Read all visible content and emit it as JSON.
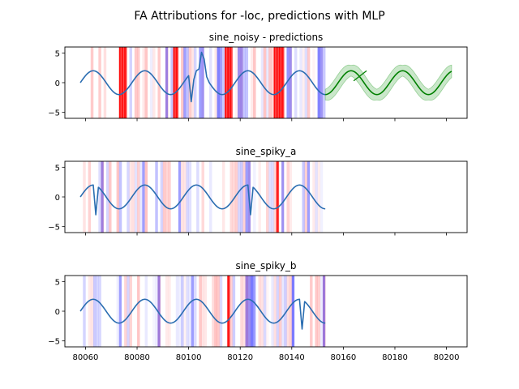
{
  "figure": {
    "suptitle": "FA Attributions for -loc, predictions with MLP"
  },
  "chart_data": [
    {
      "type": "line",
      "title": "sine_noisy - predictions",
      "xlim": [
        80052,
        80208
      ],
      "ylim": [
        -6,
        6
      ],
      "xticks": [
        80060,
        80080,
        80100,
        80120,
        80140,
        80160,
        80180,
        80200
      ],
      "xtick_labels_visible": false,
      "yticks": [
        -5,
        0,
        5
      ],
      "signal": {
        "x_start": 80058,
        "x_end": 80153,
        "period": 20,
        "amplitude": 2,
        "phase_peak_x": 80063
      },
      "spikes": [
        [
          80101,
          -3.2
        ],
        [
          80102,
          0.5
        ],
        [
          80104,
          2.3
        ],
        [
          80105,
          5.1
        ],
        [
          80106,
          4.0
        ],
        [
          80107,
          1.0
        ]
      ],
      "attribution_strong_red": [
        [
          80073,
          80076
        ],
        [
          80094,
          80096
        ],
        [
          80114,
          80117
        ],
        [
          80133,
          80137
        ]
      ],
      "attribution_blue": [
        [
          80091,
          80092
        ],
        [
          80098,
          80099
        ],
        [
          80104,
          80106
        ],
        [
          80111,
          80113
        ],
        [
          80119,
          80121
        ],
        [
          80138,
          80140
        ],
        [
          80150,
          80152
        ]
      ],
      "prediction": {
        "x_start": 80153,
        "x_end": 80202,
        "period": 20,
        "amplitude": 2,
        "phase_peak_x": 80163,
        "band_halfwidth": 0.9,
        "color": "#008000",
        "band_color": "#66bb66"
      },
      "colors": {
        "signal": "#2a6db1",
        "red": "#ff0000",
        "blue": "#0000ff"
      }
    },
    {
      "type": "line",
      "title": "sine_spiky_a",
      "xlim": [
        80052,
        80208
      ],
      "ylim": [
        -6,
        6
      ],
      "xticks": [
        80060,
        80080,
        80100,
        80120,
        80140,
        80160,
        80180,
        80200
      ],
      "xtick_labels_visible": false,
      "yticks": [
        -5,
        0,
        5
      ],
      "signal": {
        "x_start": 80058,
        "x_end": 80153,
        "period": 20,
        "amplitude": 2,
        "phase_peak_x": 80063
      },
      "spikes": [
        [
          80064,
          -3.0
        ],
        [
          80124,
          -3.0
        ]
      ],
      "attribution_strong_red": [
        [
          80134,
          80135
        ]
      ],
      "attribution_blue": [
        [
          80066,
          80067
        ],
        [
          80082,
          80083
        ],
        [
          80096,
          80097
        ],
        [
          80122,
          80124
        ],
        [
          80136,
          80137
        ],
        [
          80146,
          80147
        ]
      ],
      "colors": {
        "signal": "#2a6db1",
        "red": "#ff0000",
        "blue": "#0000ff"
      }
    },
    {
      "type": "line",
      "title": "sine_spiky_b",
      "xlim": [
        80052,
        80208
      ],
      "ylim": [
        -6,
        6
      ],
      "xticks": [
        80060,
        80080,
        80100,
        80120,
        80140,
        80160,
        80180,
        80200
      ],
      "xtick_labels_visible": true,
      "yticks": [
        -5,
        0,
        5
      ],
      "signal": {
        "x_start": 80058,
        "x_end": 80153,
        "period": 20,
        "amplitude": 2,
        "phase_peak_x": 80063
      },
      "spikes": [
        [
          80144,
          -3.0
        ]
      ],
      "attribution_strong_red": [
        [
          80115,
          80116
        ]
      ],
      "attribution_blue": [
        [
          80073,
          80074
        ],
        [
          80088,
          80089
        ],
        [
          80101,
          80102
        ],
        [
          80122,
          80126
        ],
        [
          80140,
          80141
        ],
        [
          80152,
          80153
        ]
      ],
      "colors": {
        "signal": "#2a6db1",
        "red": "#ff0000",
        "blue": "#0000ff"
      }
    }
  ]
}
